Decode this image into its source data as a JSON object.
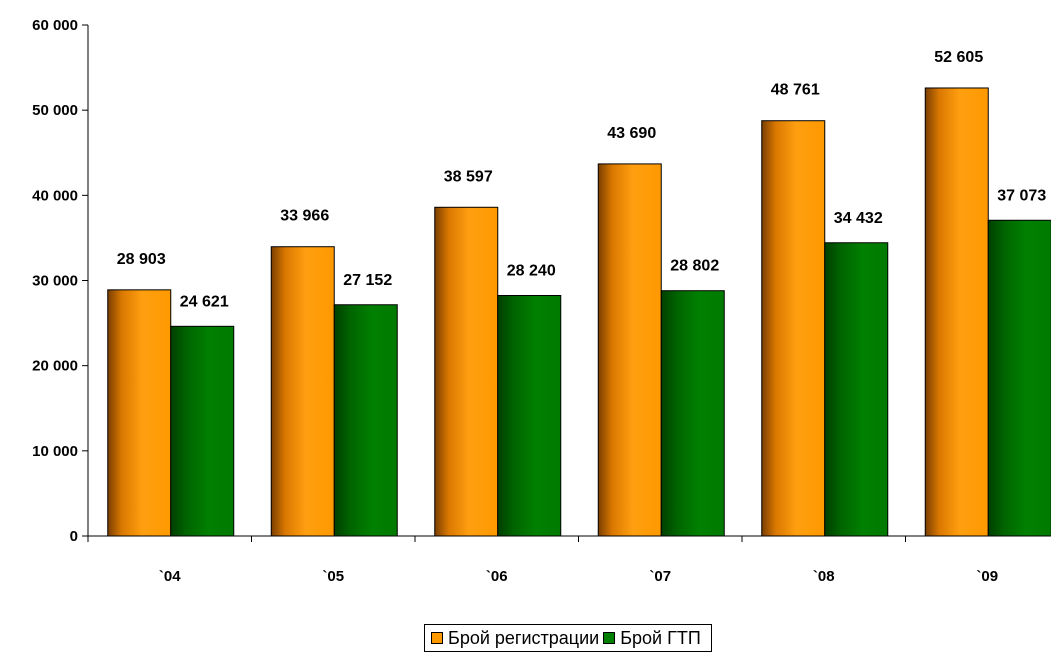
{
  "chart_data": {
    "type": "bar",
    "categories": [
      "`04",
      "`05",
      "`06",
      "`07",
      "`08",
      "`09"
    ],
    "series": [
      {
        "name": "Брой регистрации",
        "values": [
          28903,
          33966,
          38597,
          43690,
          48761,
          52605
        ],
        "labels": [
          "28 903",
          "33 966",
          "38 597",
          "43 690",
          "48 761",
          "52 605"
        ],
        "color": "#FF9900"
      },
      {
        "name": "Брой ГТП",
        "values": [
          24621,
          27152,
          28240,
          28802,
          34432,
          37073
        ],
        "labels": [
          "24 621",
          "27 152",
          "28 240",
          "28 802",
          "34 432",
          "37 073"
        ],
        "color": "#008000"
      }
    ],
    "y_ticks": [
      0,
      10000,
      20000,
      30000,
      40000,
      50000,
      60000
    ],
    "y_tick_labels": [
      "0",
      "10 000",
      "20 000",
      "30 000",
      "40 000",
      "50 000",
      "60 000"
    ],
    "ylim": [
      0,
      60000
    ],
    "grid": false,
    "legend_position": "bottom-center"
  }
}
